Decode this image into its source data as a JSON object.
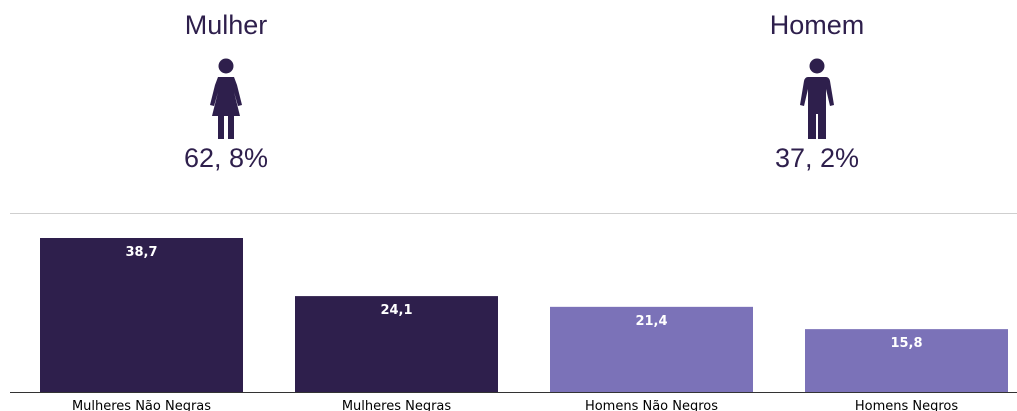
{
  "summary": {
    "female": {
      "label": "Mulher",
      "percent": "62, 8%",
      "icon": "woman-icon"
    },
    "male": {
      "label": "Homem",
      "percent": "37, 2%",
      "icon": "man-icon"
    }
  },
  "colors": {
    "dark": "#2e1f4c",
    "light": "#7b72b8"
  },
  "chart_data": {
    "type": "bar",
    "categories": [
      "Mulheres Não Negras",
      "Mulheres Negras",
      "Homens Não Negros",
      "Homens Negros"
    ],
    "values": [
      38.7,
      24.1,
      21.4,
      15.8
    ],
    "value_labels": [
      "38,7",
      "24,1",
      "21,4",
      "15,8"
    ],
    "bar_colors": [
      "#2e1f4c",
      "#2e1f4c",
      "#7b72b8",
      "#7b72b8"
    ],
    "title": "",
    "xlabel": "",
    "ylabel": "",
    "ylim": [
      0,
      40
    ],
    "grid": false,
    "legend": "none"
  }
}
